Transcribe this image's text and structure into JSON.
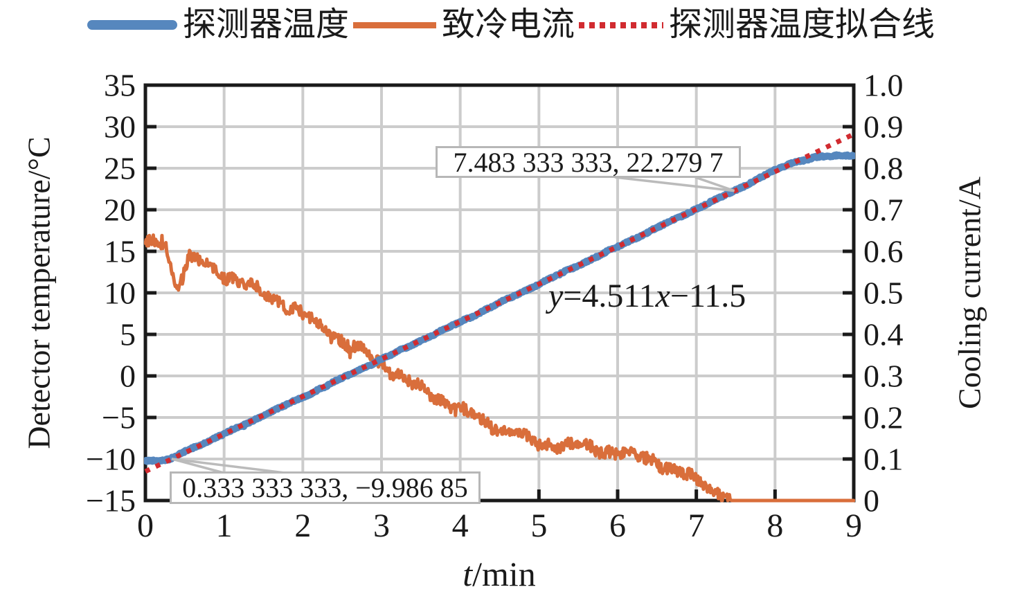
{
  "legend": {
    "items": [
      {
        "label": "探测器温度",
        "color": "#5687be",
        "style": "thick-solid"
      },
      {
        "label": "致冷电流",
        "color": "#d96e3b",
        "style": "solid"
      },
      {
        "label": "探测器温度拟合线",
        "color": "#d12b30",
        "style": "dotted"
      }
    ]
  },
  "chart_data": {
    "type": "line",
    "title": "",
    "grid": true,
    "x_axis": {
      "label_var": "t",
      "label_unit": "/min",
      "min": 0,
      "max": 9,
      "ticks": [
        0,
        1,
        2,
        3,
        4,
        5,
        6,
        7,
        8,
        9
      ]
    },
    "y_left": {
      "label": "Detector temperature/°C",
      "min": -15,
      "max": 35,
      "ticks": [
        35,
        30,
        25,
        20,
        15,
        10,
        5,
        0,
        -5,
        -10,
        -15
      ]
    },
    "y_right": {
      "label": "Cooling current/A",
      "min": 0,
      "max": 1.0,
      "ticks": [
        1.0,
        0.9,
        0.8,
        0.7,
        0.6,
        0.5,
        0.4,
        0.3,
        0.2,
        0.1,
        0
      ]
    },
    "colors": {
      "grid": "#cccccc",
      "spine": "#1a1a1a",
      "leader": "#bbbbbb",
      "annotation_border": "#b7b7b7",
      "background": "#ffffff"
    },
    "series": [
      {
        "name": "探测器温度",
        "axis": "left",
        "color": "#5687be",
        "style": "solid",
        "line_width": 10,
        "noise": 0.1,
        "points": [
          [
            0,
            -10.2
          ],
          [
            0.31,
            -10.1
          ],
          [
            0.5,
            -9.1
          ],
          [
            1,
            -7.0
          ],
          [
            2,
            -2.55
          ],
          [
            3,
            2.0
          ],
          [
            4,
            6.5
          ],
          [
            5,
            11.05
          ],
          [
            6,
            15.55
          ],
          [
            7,
            20.1
          ],
          [
            7.483,
            22.28
          ],
          [
            7.9,
            24.3
          ],
          [
            8.2,
            25.6
          ],
          [
            8.5,
            26.3
          ],
          [
            8.8,
            26.5
          ],
          [
            9,
            26.6
          ]
        ]
      },
      {
        "name": "致冷电流",
        "axis": "right",
        "color": "#d96e3b",
        "style": "solid",
        "line_width": 5,
        "noise": 0.014,
        "points": [
          [
            0,
            0.615
          ],
          [
            0.25,
            0.625
          ],
          [
            0.33,
            0.555
          ],
          [
            0.42,
            0.515
          ],
          [
            0.55,
            0.585
          ],
          [
            1,
            0.545
          ],
          [
            1.8,
            0.47
          ],
          [
            2.5,
            0.385
          ],
          [
            2.95,
            0.333
          ],
          [
            3.5,
            0.268
          ],
          [
            4,
            0.217
          ],
          [
            4.5,
            0.173
          ],
          [
            5,
            0.137
          ],
          [
            5.6,
            0.128
          ],
          [
            6,
            0.117
          ],
          [
            6.5,
            0.095
          ],
          [
            7,
            0.047
          ],
          [
            7.38,
            0.008
          ],
          [
            7.45,
            0
          ],
          [
            9,
            0
          ]
        ]
      },
      {
        "name": "探测器温度拟合线",
        "axis": "left",
        "color": "#d12b30",
        "style": "dotted",
        "line_width": 7,
        "slope": 4.511,
        "intercept": -11.5,
        "x_range": [
          0,
          9
        ]
      }
    ],
    "annotations": [
      {
        "text": "7.483 333 333, 22.279 7",
        "x": 7.483333333,
        "y": 22.2797
      },
      {
        "text": "0.333 333 333, −9.986 85",
        "x": 0.333333333,
        "y": -9.98685
      }
    ],
    "equation_label": {
      "text": "y=4.511x−11.5",
      "var_y": "y",
      "mid": "=4.511",
      "var_x": "x",
      "end": "−11.5"
    }
  }
}
